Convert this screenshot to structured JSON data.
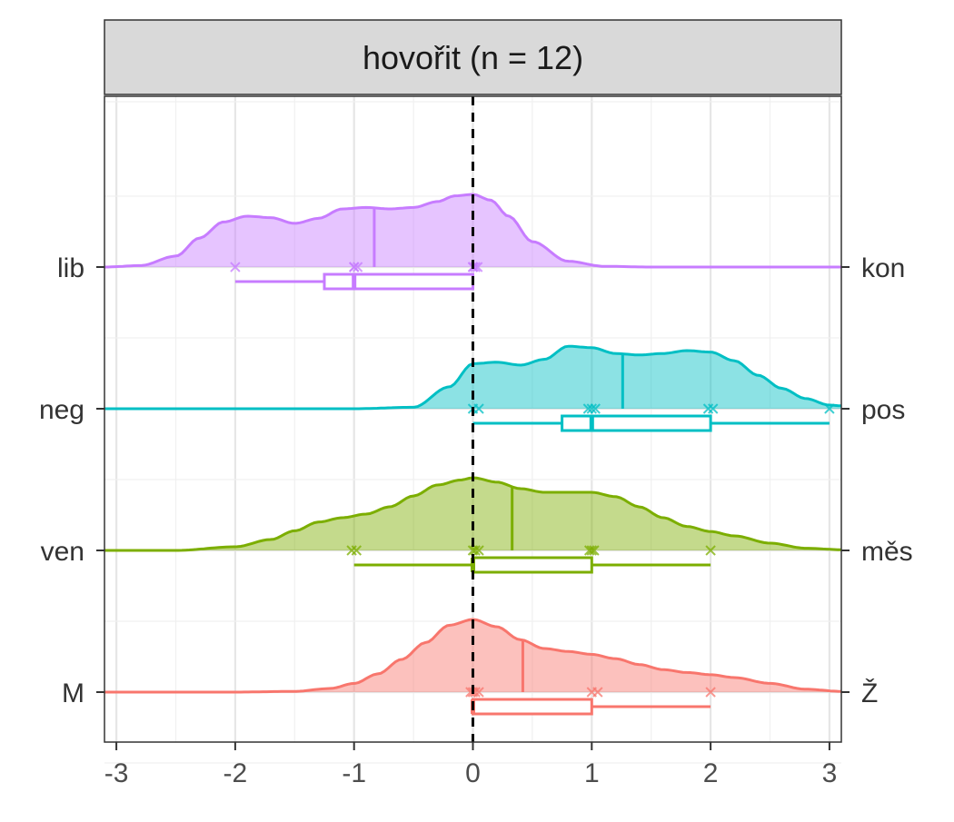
{
  "chart_data": {
    "type": "ridgeline",
    "title": "hovořit (n = 12)",
    "xlabel": "",
    "ylabel": "",
    "xlim": [
      -3.1,
      3.1
    ],
    "x_ticks": [
      -3,
      -2,
      -1,
      0,
      1,
      2,
      3
    ],
    "x_tick_labels": [
      "-3",
      "-2",
      "-1",
      "0",
      "1",
      "2",
      "3"
    ],
    "grid": true,
    "reference_line_x": 0,
    "rows": [
      {
        "left_label": "lib",
        "right_label": "kon",
        "color": "#C77CFF",
        "density_x": [
          -3.1,
          -2.8,
          -2.5,
          -2.3,
          -2.1,
          -1.9,
          -1.7,
          -1.5,
          -1.3,
          -1.1,
          -0.9,
          -0.7,
          -0.5,
          -0.3,
          -0.15,
          0,
          0.15,
          0.3,
          0.5,
          0.8,
          1.1,
          1.5,
          2,
          2.5,
          3.1
        ],
        "density_y": [
          0.0,
          0.02,
          0.15,
          0.4,
          0.62,
          0.7,
          0.68,
          0.6,
          0.67,
          0.8,
          0.82,
          0.8,
          0.82,
          0.9,
          0.98,
          1.0,
          0.92,
          0.7,
          0.35,
          0.08,
          0.01,
          0,
          0,
          0,
          0
        ],
        "mean": -0.83,
        "points": [
          -2,
          -1,
          -1,
          -0.97,
          0,
          0,
          0.02,
          0.04
        ],
        "box": {
          "min": -2,
          "q1": -1.25,
          "median": -1,
          "q3": 0,
          "max": 0
        }
      },
      {
        "left_label": "neg",
        "right_label": "pos",
        "color": "#00BFC4",
        "density_x": [
          -3.1,
          -2,
          -1,
          -0.5,
          -0.2,
          0,
          0.2,
          0.4,
          0.6,
          0.8,
          1.0,
          1.2,
          1.4,
          1.6,
          1.8,
          2.0,
          2.2,
          2.4,
          2.6,
          2.8,
          3.0,
          3.1
        ],
        "density_y": [
          0,
          0,
          0,
          0.02,
          0.3,
          0.62,
          0.64,
          0.6,
          0.68,
          0.86,
          0.84,
          0.76,
          0.74,
          0.76,
          0.8,
          0.78,
          0.66,
          0.46,
          0.28,
          0.14,
          0.05,
          0.04
        ],
        "mean": 1.26,
        "points": [
          0,
          0.05,
          0.97,
          1.0,
          1.03,
          1.98,
          2.02,
          3.0
        ],
        "box": {
          "min": 0,
          "q1": 0.75,
          "median": 1,
          "q3": 2,
          "max": 3
        }
      },
      {
        "left_label": "ven",
        "right_label": "měs",
        "color": "#7CAE00",
        "density_x": [
          -3.1,
          -2.5,
          -2,
          -1.7,
          -1.5,
          -1.3,
          -1.1,
          -0.9,
          -0.7,
          -0.5,
          -0.3,
          -0.1,
          0,
          0.2,
          0.4,
          0.6,
          0.8,
          1.0,
          1.2,
          1.4,
          1.6,
          1.8,
          2.0,
          2.2,
          2.5,
          2.8,
          3.1
        ],
        "density_y": [
          0,
          0,
          0.05,
          0.15,
          0.27,
          0.39,
          0.45,
          0.5,
          0.6,
          0.75,
          0.9,
          0.97,
          1.0,
          0.94,
          0.85,
          0.8,
          0.8,
          0.8,
          0.74,
          0.6,
          0.45,
          0.33,
          0.26,
          0.2,
          0.1,
          0.03,
          0.01
        ],
        "mean": 0.33,
        "points": [
          -1.02,
          -0.98,
          0,
          0.02,
          0.05,
          0.98,
          1.0,
          1.02,
          2.0
        ],
        "box": {
          "min": -1,
          "q1": 0,
          "median": 0,
          "q3": 1,
          "max": 2
        }
      },
      {
        "left_label": "M",
        "right_label": "Ž",
        "color": "#F8766D",
        "density_x": [
          -3.1,
          -2,
          -1.5,
          -1.2,
          -1,
          -0.8,
          -0.6,
          -0.4,
          -0.2,
          0,
          0.2,
          0.4,
          0.6,
          0.8,
          1.0,
          1.2,
          1.4,
          1.6,
          1.8,
          2.0,
          2.2,
          2.5,
          2.8,
          3.1
        ],
        "density_y": [
          0,
          0,
          0.01,
          0.05,
          0.12,
          0.25,
          0.45,
          0.68,
          0.92,
          1.0,
          0.9,
          0.72,
          0.6,
          0.56,
          0.52,
          0.46,
          0.38,
          0.31,
          0.27,
          0.24,
          0.2,
          0.12,
          0.04,
          0.01
        ],
        "mean": 0.42,
        "points": [
          -0.02,
          0,
          0.02,
          0.05,
          1.0,
          1.05,
          2.0
        ],
        "box": {
          "min": 0,
          "q1": 0,
          "median": 0,
          "q3": 1,
          "max": 2
        }
      }
    ]
  }
}
